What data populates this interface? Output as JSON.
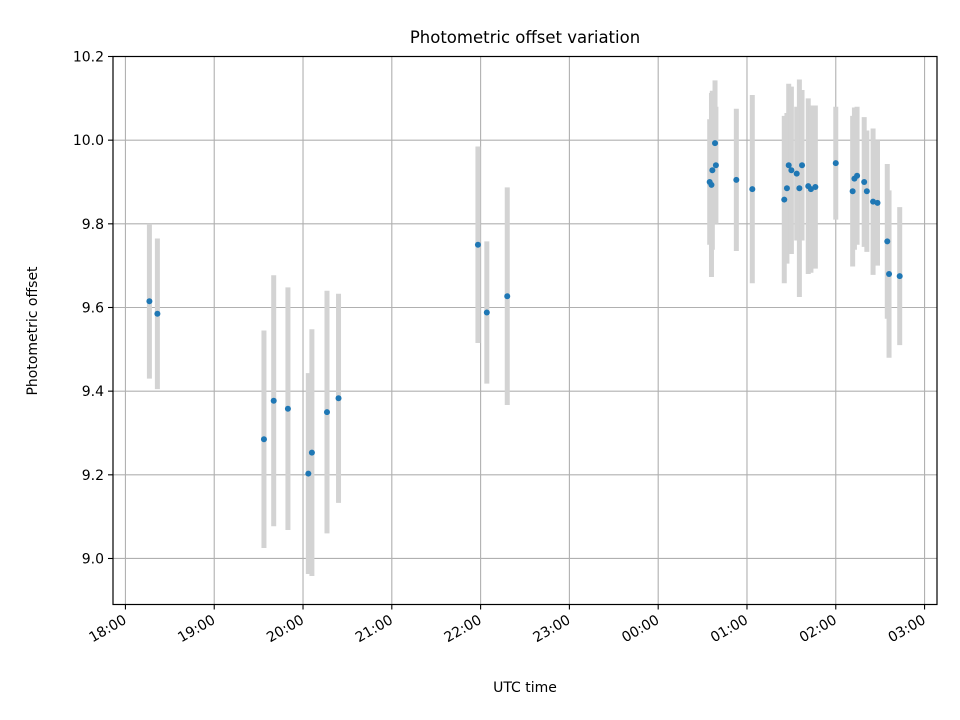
{
  "chart_data": {
    "type": "scatter",
    "title": "Photometric offset variation",
    "xlabel": "UTC time",
    "ylabel": "Photometric offset",
    "grid": true,
    "xlim_hours": [
      17.86,
      27.14
    ],
    "ylim": [
      8.89,
      10.2
    ],
    "x_ticks": [
      {
        "hours": 18,
        "label": "18:00"
      },
      {
        "hours": 19,
        "label": "19:00"
      },
      {
        "hours": 20,
        "label": "20:00"
      },
      {
        "hours": 21,
        "label": "21:00"
      },
      {
        "hours": 22,
        "label": "22:00"
      },
      {
        "hours": 23,
        "label": "23:00"
      },
      {
        "hours": 24,
        "label": "00:00"
      },
      {
        "hours": 25,
        "label": "01:00"
      },
      {
        "hours": 26,
        "label": "02:00"
      },
      {
        "hours": 27,
        "label": "03:00"
      }
    ],
    "y_ticks": [
      {
        "value": 9.0,
        "label": "9.0"
      },
      {
        "value": 9.2,
        "label": "9.2"
      },
      {
        "value": 9.4,
        "label": "9.4"
      },
      {
        "value": 9.6,
        "label": "9.6"
      },
      {
        "value": 9.8,
        "label": "9.8"
      },
      {
        "value": 10.0,
        "label": "10.0"
      },
      {
        "value": 10.2,
        "label": "10.2"
      }
    ],
    "colors": {
      "point": "#1f77b4",
      "errorbar": "#d3d3d3",
      "grid": "#b0b0b0",
      "axis": "#000000"
    },
    "points": [
      {
        "t": 18.27,
        "y": 9.615,
        "err": 0.185
      },
      {
        "t": 18.36,
        "y": 9.585,
        "err": 0.18
      },
      {
        "t": 19.56,
        "y": 9.285,
        "err": 0.26
      },
      {
        "t": 19.67,
        "y": 9.377,
        "err": 0.3
      },
      {
        "t": 19.83,
        "y": 9.358,
        "err": 0.29
      },
      {
        "t": 20.06,
        "y": 9.203,
        "err": 0.24
      },
      {
        "t": 20.1,
        "y": 9.253,
        "err": 0.295
      },
      {
        "t": 20.27,
        "y": 9.35,
        "err": 0.29
      },
      {
        "t": 20.4,
        "y": 9.383,
        "err": 0.25
      },
      {
        "t": 21.97,
        "y": 9.75,
        "err": 0.235
      },
      {
        "t": 22.07,
        "y": 9.588,
        "err": 0.17
      },
      {
        "t": 22.3,
        "y": 9.627,
        "err": 0.26
      },
      {
        "t": 24.58,
        "y": 9.9,
        "err": 0.15
      },
      {
        "t": 24.6,
        "y": 9.893,
        "err": 0.22
      },
      {
        "t": 24.61,
        "y": 9.928,
        "err": 0.19
      },
      {
        "t": 24.64,
        "y": 9.993,
        "err": 0.15
      },
      {
        "t": 24.65,
        "y": 9.94,
        "err": 0.14
      },
      {
        "t": 24.88,
        "y": 9.905,
        "err": 0.17
      },
      {
        "t": 25.06,
        "y": 9.883,
        "err": 0.225
      },
      {
        "t": 25.42,
        "y": 9.858,
        "err": 0.2
      },
      {
        "t": 25.45,
        "y": 9.885,
        "err": 0.18
      },
      {
        "t": 25.47,
        "y": 9.94,
        "err": 0.195
      },
      {
        "t": 25.5,
        "y": 9.928,
        "err": 0.2
      },
      {
        "t": 25.56,
        "y": 9.92,
        "err": 0.16
      },
      {
        "t": 25.59,
        "y": 9.885,
        "err": 0.26
      },
      {
        "t": 25.62,
        "y": 9.94,
        "err": 0.18
      },
      {
        "t": 25.69,
        "y": 9.89,
        "err": 0.21
      },
      {
        "t": 25.72,
        "y": 9.883,
        "err": 0.2
      },
      {
        "t": 25.77,
        "y": 9.888,
        "err": 0.195
      },
      {
        "t": 26.0,
        "y": 9.945,
        "err": 0.135
      },
      {
        "t": 26.19,
        "y": 9.878,
        "err": 0.18
      },
      {
        "t": 26.21,
        "y": 9.908,
        "err": 0.17
      },
      {
        "t": 26.24,
        "y": 9.915,
        "err": 0.165
      },
      {
        "t": 26.32,
        "y": 9.9,
        "err": 0.155
      },
      {
        "t": 26.35,
        "y": 9.878,
        "err": 0.145
      },
      {
        "t": 26.42,
        "y": 9.853,
        "err": 0.175
      },
      {
        "t": 26.47,
        "y": 9.85,
        "err": 0.15
      },
      {
        "t": 26.58,
        "y": 9.758,
        "err": 0.185
      },
      {
        "t": 26.6,
        "y": 9.68,
        "err": 0.2
      },
      {
        "t": 26.72,
        "y": 9.675,
        "err": 0.165
      }
    ]
  }
}
